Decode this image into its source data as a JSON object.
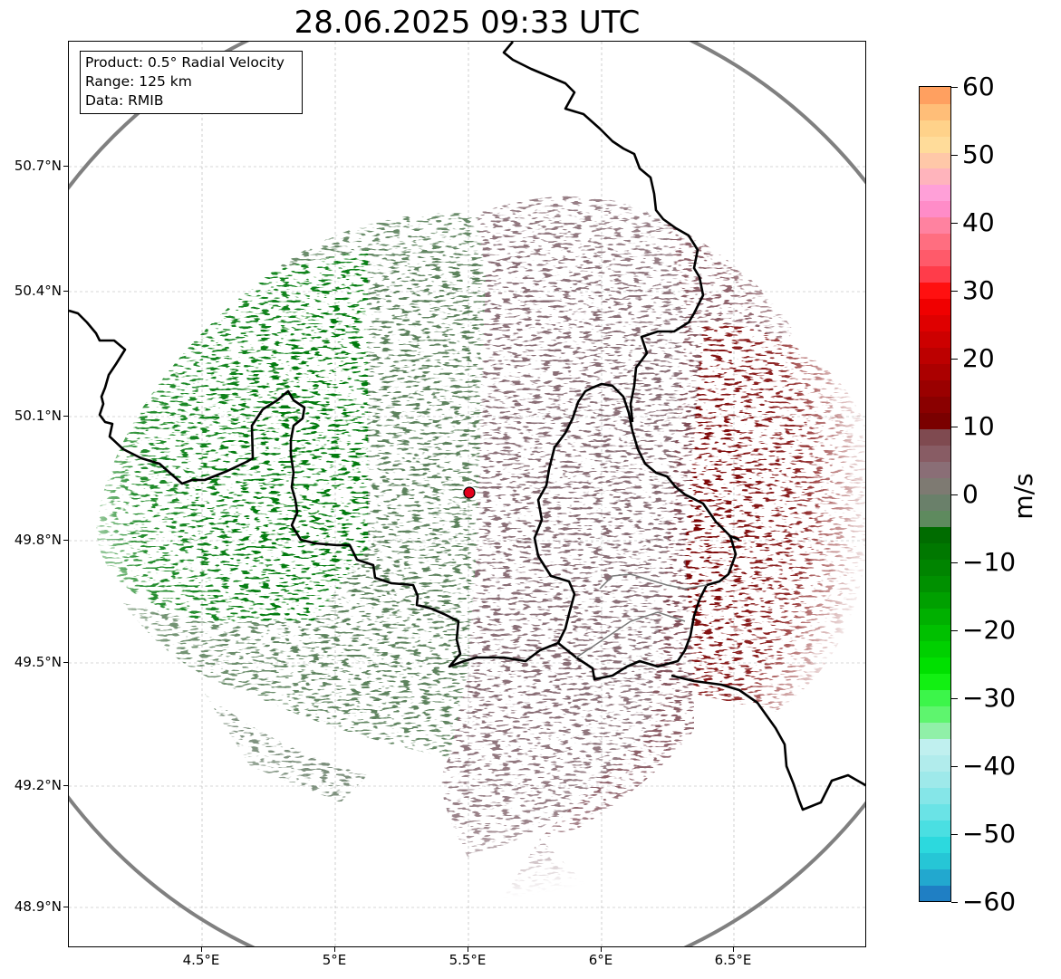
{
  "title": "28.06.2025 09:33 UTC",
  "info_box": {
    "product": "Product: 0.5° Radial Velocity",
    "range": "Range: 125 km",
    "data": "Data: RMIB"
  },
  "axes": {
    "x_ticks": [
      "4.5°E",
      "5°E",
      "5.5°E",
      "6°E",
      "6.5°E"
    ],
    "y_ticks": [
      "50.7°N",
      "50.4°N",
      "50.1°N",
      "49.8°N",
      "49.5°N",
      "49.2°N",
      "48.9°N"
    ],
    "grid": true
  },
  "radar": {
    "site_color": "#e3001b",
    "range_ring_color": "#808080"
  },
  "colorbar": {
    "label": "m/s",
    "ticks": [
      "60",
      "50",
      "40",
      "30",
      "20",
      "10",
      "0",
      "−10",
      "−20",
      "−30",
      "−40",
      "−50",
      "−60"
    ],
    "min": -60,
    "max": 60,
    "colors": [
      "#1f7fc4",
      "#22a8cf",
      "#26c6d6",
      "#2cd9de",
      "#4adfe2",
      "#6ae3e6",
      "#85e6e8",
      "#9ee9ea",
      "#b1ecec",
      "#c0f0ef",
      "#90f0a8",
      "#5ef56e",
      "#3cf54a",
      "#12f012",
      "#00e000",
      "#00d000",
      "#00c000",
      "#00b000",
      "#00a000",
      "#009000",
      "#008400",
      "#007800",
      "#006c00",
      "#5e8a5e",
      "#6a806a",
      "#7e7a72",
      "#8a6e76",
      "#885c64",
      "#7f4a50",
      "#7a0000",
      "#8a0000",
      "#9a0000",
      "#ab0000",
      "#bc0000",
      "#cd0000",
      "#df0000",
      "#f00000",
      "#ff1010",
      "#ff3c4a",
      "#ff5a6a",
      "#ff6e80",
      "#ff82a0",
      "#ff8cc8",
      "#ffa0d8",
      "#ffb4bc",
      "#ffc8a8",
      "#ffdc9a",
      "#ffd28a",
      "#ffbe78",
      "#ffa060"
    ]
  }
}
